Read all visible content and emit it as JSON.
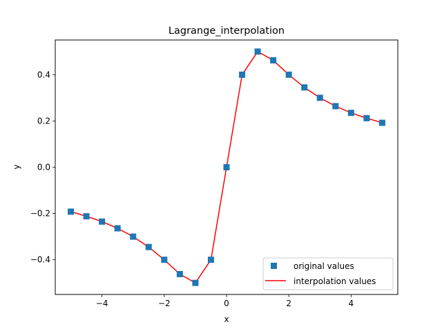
{
  "chart_data": {
    "type": "line",
    "title": "Lagrange_interpolation",
    "xlabel": "x",
    "ylabel": "y",
    "xlim": [
      -5.5,
      5.5
    ],
    "ylim": [
      -0.55,
      0.55
    ],
    "xticks": [
      -4,
      -2,
      0,
      2,
      4
    ],
    "xtick_labels": [
      "−4",
      "−2",
      "0",
      "2",
      "4"
    ],
    "yticks": [
      -0.4,
      -0.2,
      0.0,
      0.2,
      0.4
    ],
    "ytick_labels": [
      "−0.4",
      "−0.2",
      "0.0",
      "0.2",
      "0.4"
    ],
    "grid": false,
    "legend_position": "lower-right",
    "series": [
      {
        "name": "original values",
        "style": "markers",
        "marker": "square",
        "color": "#1f77b4",
        "x": [
          -5,
          -4.5,
          -4,
          -3.5,
          -3,
          -2.5,
          -2,
          -1.5,
          -1,
          -0.5,
          0,
          0.5,
          1,
          1.5,
          2,
          2.5,
          3,
          3.5,
          4,
          4.5,
          5
        ],
        "y": [
          -0.192,
          -0.212,
          -0.235,
          -0.264,
          -0.3,
          -0.345,
          -0.4,
          -0.462,
          -0.5,
          -0.4,
          0.0,
          0.4,
          0.5,
          0.462,
          0.4,
          0.345,
          0.3,
          0.264,
          0.235,
          0.212,
          0.192
        ]
      },
      {
        "name": "interpolation values",
        "style": "line",
        "color": "#ff0000",
        "x": [
          -5,
          -4.5,
          -4,
          -3.5,
          -3,
          -2.5,
          -2,
          -1.5,
          -1,
          -0.5,
          0,
          0.5,
          1,
          1.5,
          2,
          2.5,
          3,
          3.5,
          4,
          4.5,
          5
        ],
        "y": [
          -0.192,
          -0.212,
          -0.235,
          -0.264,
          -0.3,
          -0.345,
          -0.4,
          -0.462,
          -0.5,
          -0.4,
          0.0,
          0.4,
          0.5,
          0.462,
          0.4,
          0.345,
          0.3,
          0.264,
          0.235,
          0.212,
          0.192
        ]
      }
    ]
  }
}
